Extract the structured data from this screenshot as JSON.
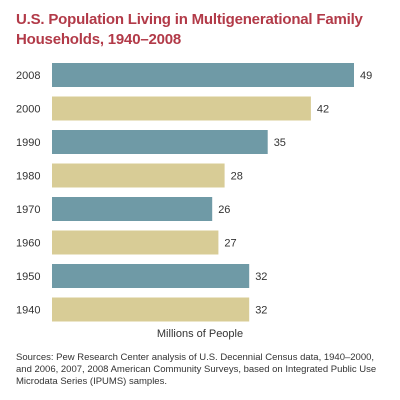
{
  "title_lines": [
    "U.S. Population Living in Multigenerational Family",
    "Households, 1940–2008"
  ],
  "sources": "Sources: Pew Research Center analysis of U.S. Decennial Census data, 1940–2000, and 2006, 2007, 2008 American Community Surveys, based on Integrated Public Use Microdata Series (IPUMS) samples.",
  "colors": {
    "title": "#b23a48",
    "bar_teal": "#6f9aa6",
    "bar_tan": "#d8cc96"
  },
  "chart_data": {
    "type": "bar",
    "orientation": "horizontal",
    "xlabel": "Millions of People",
    "categories": [
      "2008",
      "2000",
      "1990",
      "1980",
      "1970",
      "1960",
      "1950",
      "1940"
    ],
    "values": [
      49,
      42,
      35,
      28,
      26,
      27,
      32,
      32
    ],
    "bar_colors": [
      "#6f9aa6",
      "#d8cc96",
      "#6f9aa6",
      "#d8cc96",
      "#6f9aa6",
      "#d8cc96",
      "#6f9aa6",
      "#d8cc96"
    ],
    "xlim": [
      0,
      49
    ],
    "grid": false
  }
}
